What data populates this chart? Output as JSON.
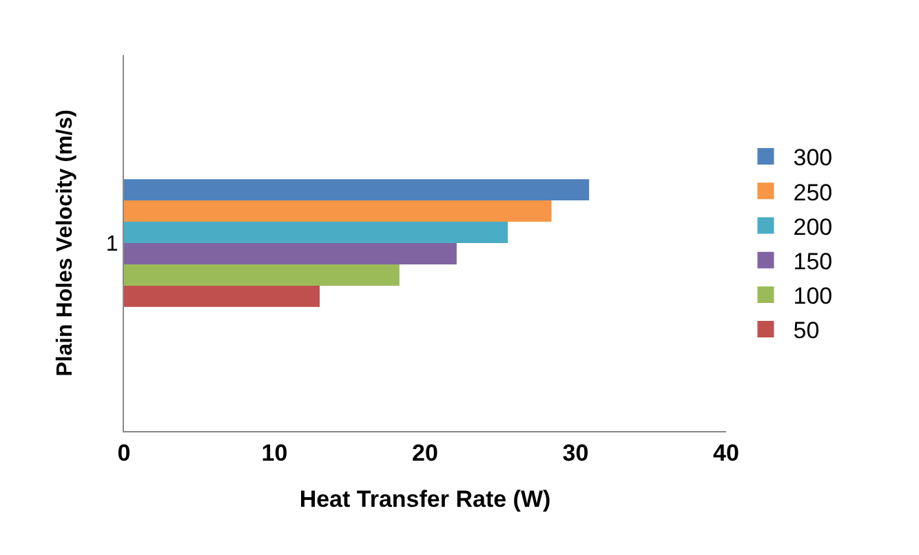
{
  "chart_data": {
    "type": "bar",
    "orientation": "horizontal",
    "categories": [
      "1"
    ],
    "series": [
      {
        "name": "300",
        "color": "#4f81bd",
        "values": [
          30.9
        ]
      },
      {
        "name": "250",
        "color": "#f79646",
        "values": [
          28.4
        ]
      },
      {
        "name": "200",
        "color": "#4bacc6",
        "values": [
          25.5
        ]
      },
      {
        "name": "150",
        "color": "#8064a2",
        "values": [
          22.1
        ]
      },
      {
        "name": "100",
        "color": "#9bbb59",
        "values": [
          18.3
        ]
      },
      {
        "name": "50",
        "color": "#c0504d",
        "values": [
          13.0
        ]
      }
    ],
    "xlim": [
      0,
      40
    ],
    "xticks": [
      0,
      10,
      20,
      30,
      40
    ],
    "xlabel": "Heat Transfer Rate (W)",
    "ylabel": "Plain Holes Velocity (m/s)",
    "grid": false,
    "legend": "right"
  }
}
